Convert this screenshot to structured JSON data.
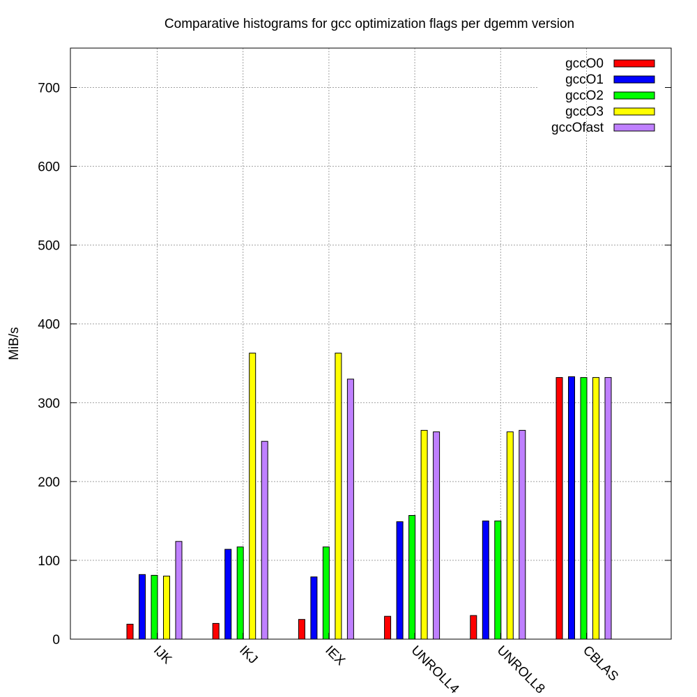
{
  "chart_data": {
    "type": "bar",
    "title": "Comparative histograms for gcc optimization flags per dgemm version",
    "xlabel": "",
    "ylabel": "MiB/s",
    "ylim": [
      0,
      750
    ],
    "yticks": [
      0,
      100,
      200,
      300,
      400,
      500,
      600,
      700
    ],
    "categories": [
      "IJK",
      "IKJ",
      "IEX",
      "UNROLL4",
      "UNROLL8",
      "CBLAS"
    ],
    "series": [
      {
        "name": "gccO0",
        "color": "#ff0000",
        "values": [
          19,
          20,
          25,
          29,
          30,
          332
        ]
      },
      {
        "name": "gccO1",
        "color": "#0000ff",
        "values": [
          82,
          114,
          79,
          149,
          150,
          333
        ]
      },
      {
        "name": "gccO2",
        "color": "#00ff00",
        "values": [
          81,
          117,
          117,
          157,
          150,
          332
        ]
      },
      {
        "name": "gccO3",
        "color": "#ffff00",
        "values": [
          80,
          363,
          363,
          265,
          263,
          332
        ]
      },
      {
        "name": "gccOfast",
        "color": "#bf80ff",
        "values": [
          124,
          251,
          330,
          263,
          265,
          332
        ]
      }
    ],
    "grid": true,
    "legend_position": "top-right"
  }
}
